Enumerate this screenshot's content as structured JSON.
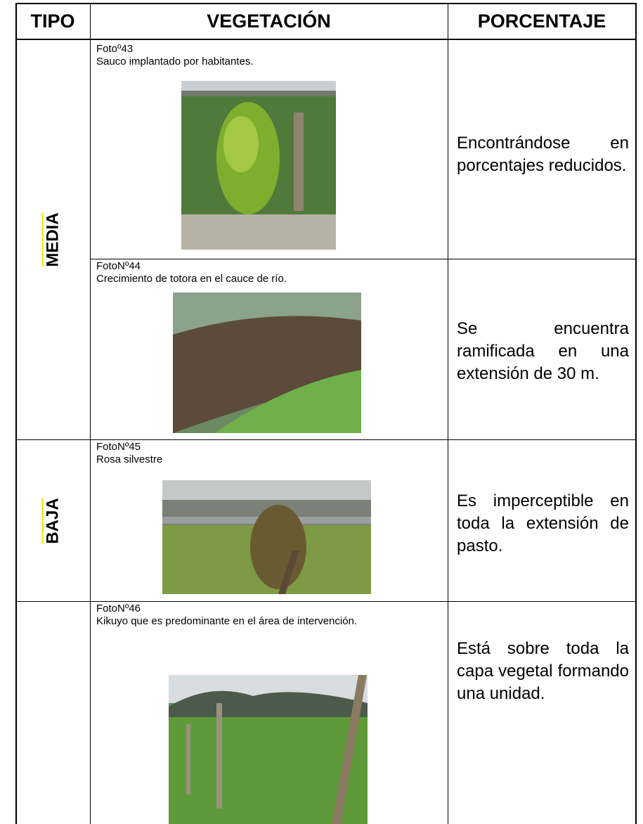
{
  "table": {
    "headers": [
      "TIPO",
      "VEGETACIÓN",
      "PORCENTAJE"
    ],
    "types": [
      "MEDIA",
      "BAJA"
    ],
    "rows": [
      {
        "photo": "Fotoº43",
        "caption": "Sauco implantado por habitantes.",
        "percentage": "Encontrándose en porcentajes reducidos."
      },
      {
        "photo": "FotoNº44",
        "caption": "Crecimiento de totora en el cauce de río.",
        "percentage": "Se encuentra ramificada en una extensión de 30 m."
      },
      {
        "photo": "FotoNº45",
        "caption": "Rosa silvestre",
        "percentage": "Es imperceptible en toda la extensión de pasto."
      },
      {
        "photo": "FotoNº46",
        "caption": "Kikuyo que es predominante en el área de intervención.",
        "percentage": "Está sobre toda la capa vegetal formando una unidad."
      }
    ]
  }
}
